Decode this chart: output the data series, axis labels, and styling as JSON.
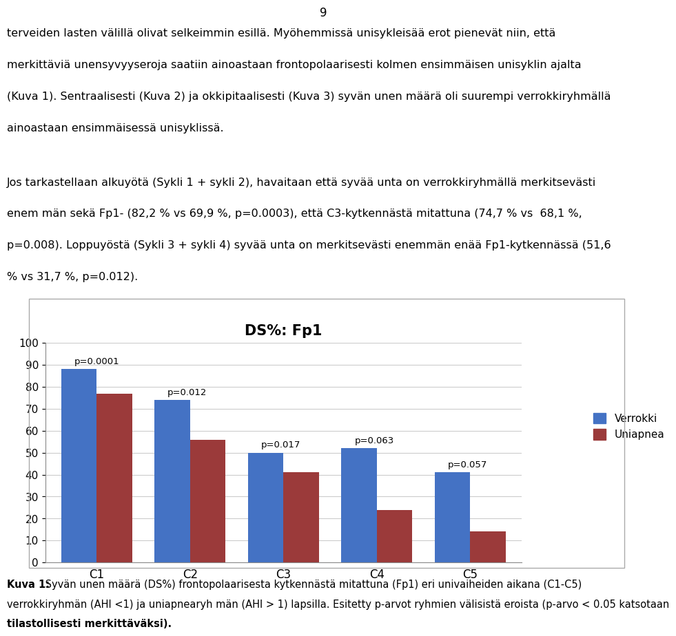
{
  "page_number": "9",
  "para1_lines": [
    "terveiden lasten välillä olivat selkeimmin esillä. Myöhemmissä unisykleisää erot pienevät niin, että",
    "merkittäviä unensyvyyseroja saatiin ainoastaan frontopolaarisesti kolmen ensimmäisen unisyklin ajalta",
    "(Kuva 1). Sentraalisesti (Kuva 2) ja okkipitaalisesti (Kuva 3) syvän unen määrä oli suurempi verrokkiryhmällä",
    "ainoastaan ensimmäisessä unisyklissä."
  ],
  "para2_lines": [
    "Jos tarkastellaan alku yötä (Sykli 1 + sykli 2), havaitaan että syvää unta on verrokkiryhmällä merkitsevästi",
    "enem män sekä Fp1- (82,2 % vs 69,9 %, p=0.0003), että C3-kytkennästä mitattuna (74,7 % vs  68,1 %,",
    "p=0.008). Loppuyöstä (Sykli 3 + sykli 4) syvää unta on merkitsevästi enemmän enää Fp1-kytkennässä (51,6",
    "% vs 31,7 %, p=0.012)."
  ],
  "chart_title": "DS%: Fp1",
  "categories": [
    "C1",
    "C2",
    "C3",
    "C4",
    "C5"
  ],
  "verrokki_values": [
    88,
    74,
    50,
    52,
    41
  ],
  "uniapnea_values": [
    77,
    56,
    41,
    24,
    14
  ],
  "p_values": [
    "p=0.0001",
    "p=0.012",
    "p=0.017",
    "p=0.063",
    "p=0.057"
  ],
  "verrokki_color": "#4472C4",
  "uniapnea_color": "#9B3A3A",
  "legend_labels": [
    "Verrokki",
    "Uniapnea"
  ],
  "ylim": [
    0,
    100
  ],
  "yticks": [
    0,
    10,
    20,
    30,
    40,
    50,
    60,
    70,
    80,
    90,
    100
  ],
  "background_color": "#ffffff",
  "chart_bg_color": "#ffffff",
  "grid_color": "#cccccc",
  "caption_line1_bold": "Kuva 1:",
  "caption_line1_normal": " Syvän unen määrä (DS%) frontopolaarisesta kytkennästä mitattuna (Fp1) eri univaiheiden aikana (C1-C5)",
  "caption_line2": "verrokkiryhmän (AHI <1) ja uniapnearyh män (AHI > 1) lapsilla. Esitetty p-arvot ryhmien välisistä eroista (p-arvo < 0.05 katsotaan",
  "caption_line3": "tilastollisesti merkittäväksi)."
}
